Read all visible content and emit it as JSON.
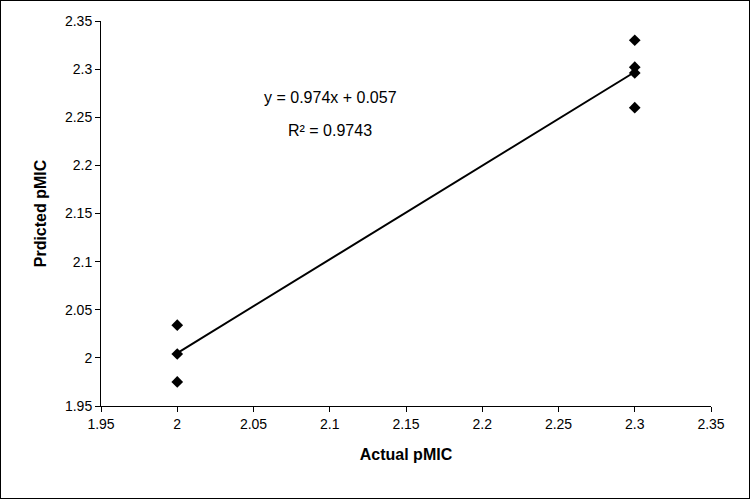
{
  "chart_data": {
    "type": "scatter",
    "x_label": "Actual pMIC",
    "y_label": "Prdicted pMIC",
    "xlim": [
      1.95,
      2.35
    ],
    "ylim": [
      1.95,
      2.35
    ],
    "xticks": [
      {
        "value": 1.95,
        "label": "1.95"
      },
      2,
      2.05,
      2.1,
      2.15,
      2.2,
      2.25,
      2.3,
      2.35
    ],
    "yticks": [
      {
        "value": 1.95,
        "label": "1.95"
      },
      2,
      2.05,
      2.1,
      2.15,
      2.2,
      2.25,
      2.3,
      2.35
    ],
    "grid": false,
    "annotations": [
      "y = 0.974x + 0.057",
      "R² = 0.9743"
    ],
    "series": [
      {
        "type": "scatter",
        "marker": "diamond",
        "color": "#000000",
        "x": [
          2,
          2,
          2,
          2.3,
          2.3,
          2.3,
          2.3
        ],
        "values": [
          2.034,
          2.004,
          1.975,
          2.33,
          2.302,
          2.296,
          2.26
        ]
      },
      {
        "type": "line",
        "line_style": "solid",
        "color": "#000000",
        "x": [
          2,
          2.3
        ],
        "values": [
          2.005,
          2.297
        ]
      }
    ]
  }
}
